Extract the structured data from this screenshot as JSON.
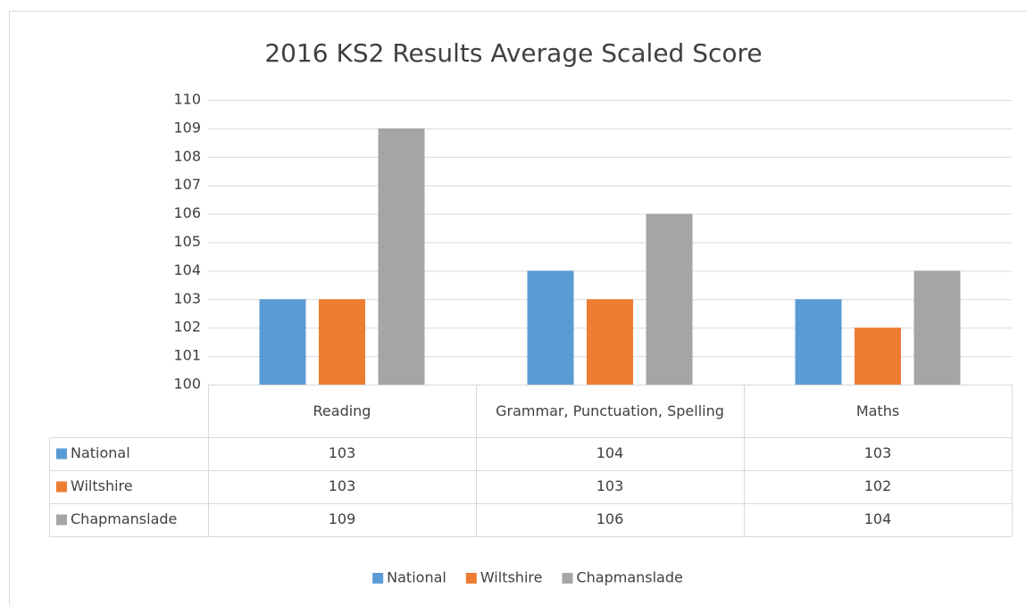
{
  "chart_data": {
    "type": "bar",
    "title": "2016 KS2 Results Average Scaled Score",
    "categories": [
      "Reading",
      "Grammar, Punctuation, Spelling",
      "Maths"
    ],
    "series": [
      {
        "name": "National",
        "color": "#5b9bd5",
        "values": [
          103,
          104,
          103
        ]
      },
      {
        "name": "Wiltshire",
        "color": "#ed7d31",
        "values": [
          103,
          103,
          102
        ]
      },
      {
        "name": "Chapmanslade",
        "color": "#a5a5a5",
        "values": [
          109,
          106,
          104
        ]
      }
    ],
    "ylim": [
      100,
      110
    ],
    "yticks": [
      100,
      101,
      102,
      103,
      104,
      105,
      106,
      107,
      108,
      109,
      110
    ],
    "grid": true,
    "legend": "bottom",
    "data_table": true
  }
}
